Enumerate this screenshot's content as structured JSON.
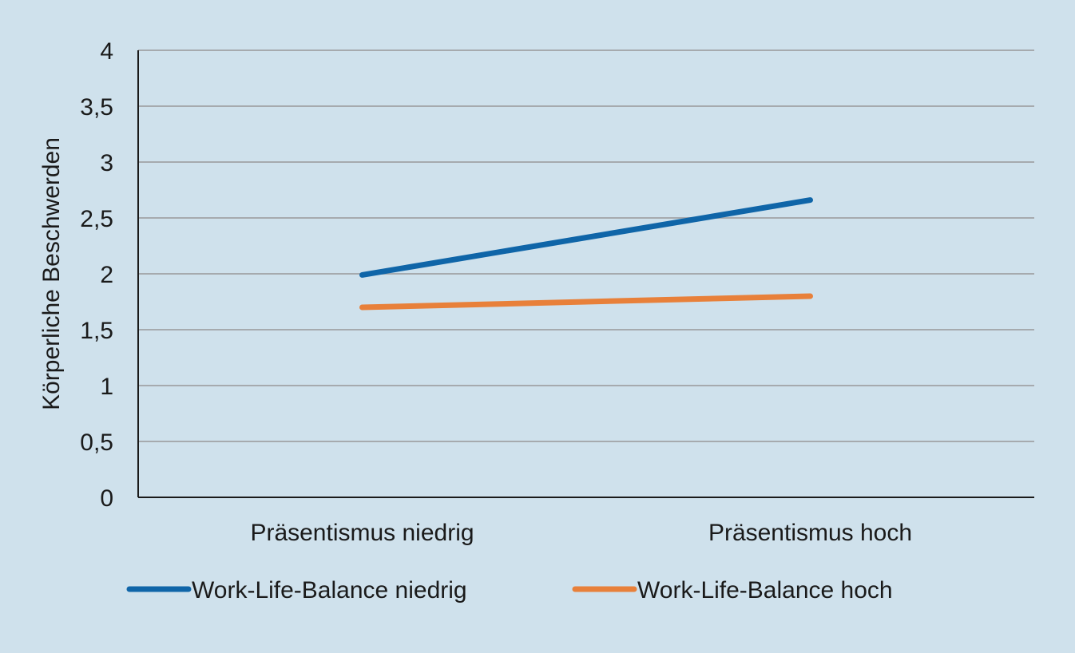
{
  "chart_data": {
    "type": "line",
    "title": "",
    "xlabel": "",
    "ylabel": "Körperliche Beschwerden",
    "ylim": [
      0,
      4
    ],
    "ytick_values": [
      0,
      0.5,
      1,
      1.5,
      2,
      2.5,
      3,
      3.5,
      4
    ],
    "ytick_labels": [
      "0",
      "0,5",
      "1",
      "1,5",
      "2",
      "2,5",
      "3",
      "3,5",
      "4"
    ],
    "categories": [
      "Präsentismus niedrig",
      "Präsentismus hoch"
    ],
    "series": [
      {
        "name": "Work-Life-Balance niedrig",
        "values": [
          1.99,
          2.66
        ],
        "color": "#0f65a8"
      },
      {
        "name": "Work-Life-Balance hoch",
        "values": [
          1.7,
          1.8
        ],
        "color": "#e8803a"
      }
    ],
    "grid": true,
    "legend": "bottom"
  },
  "colors": {
    "background": "#cfe1ec",
    "grid": "#a6aaae",
    "axis": "#1a1a1a"
  }
}
